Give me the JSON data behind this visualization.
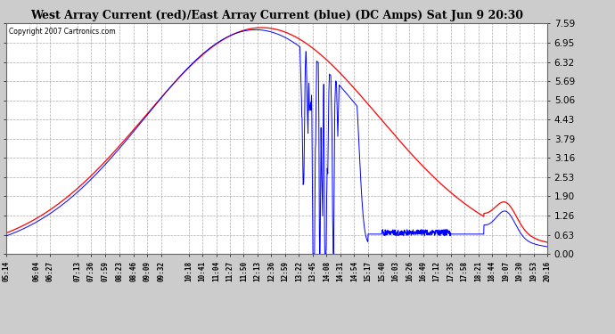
{
  "title": "West Array Current (red)/East Array Current (blue) (DC Amps) Sat Jun 9 20:30",
  "copyright": "Copyright 2007 Cartronics.com",
  "bg_color": "#cccccc",
  "plot_bg_color": "#ffffff",
  "grid_color": "#aaaaaa",
  "ymin": 0.0,
  "ymax": 7.59,
  "yticks": [
    0.0,
    0.63,
    1.26,
    1.9,
    2.53,
    3.16,
    3.79,
    4.43,
    5.06,
    5.69,
    6.32,
    6.95,
    7.59
  ],
  "xtick_labels": [
    "05:14",
    "06:04",
    "06:27",
    "07:13",
    "07:36",
    "07:59",
    "08:23",
    "08:46",
    "09:09",
    "09:32",
    "10:18",
    "10:41",
    "11:04",
    "11:27",
    "11:50",
    "12:13",
    "12:36",
    "12:59",
    "13:22",
    "13:45",
    "14:08",
    "14:31",
    "14:54",
    "15:17",
    "15:40",
    "16:03",
    "16:26",
    "16:49",
    "17:12",
    "17:35",
    "17:58",
    "18:21",
    "18:44",
    "19:07",
    "19:30",
    "19:53",
    "20:16"
  ]
}
